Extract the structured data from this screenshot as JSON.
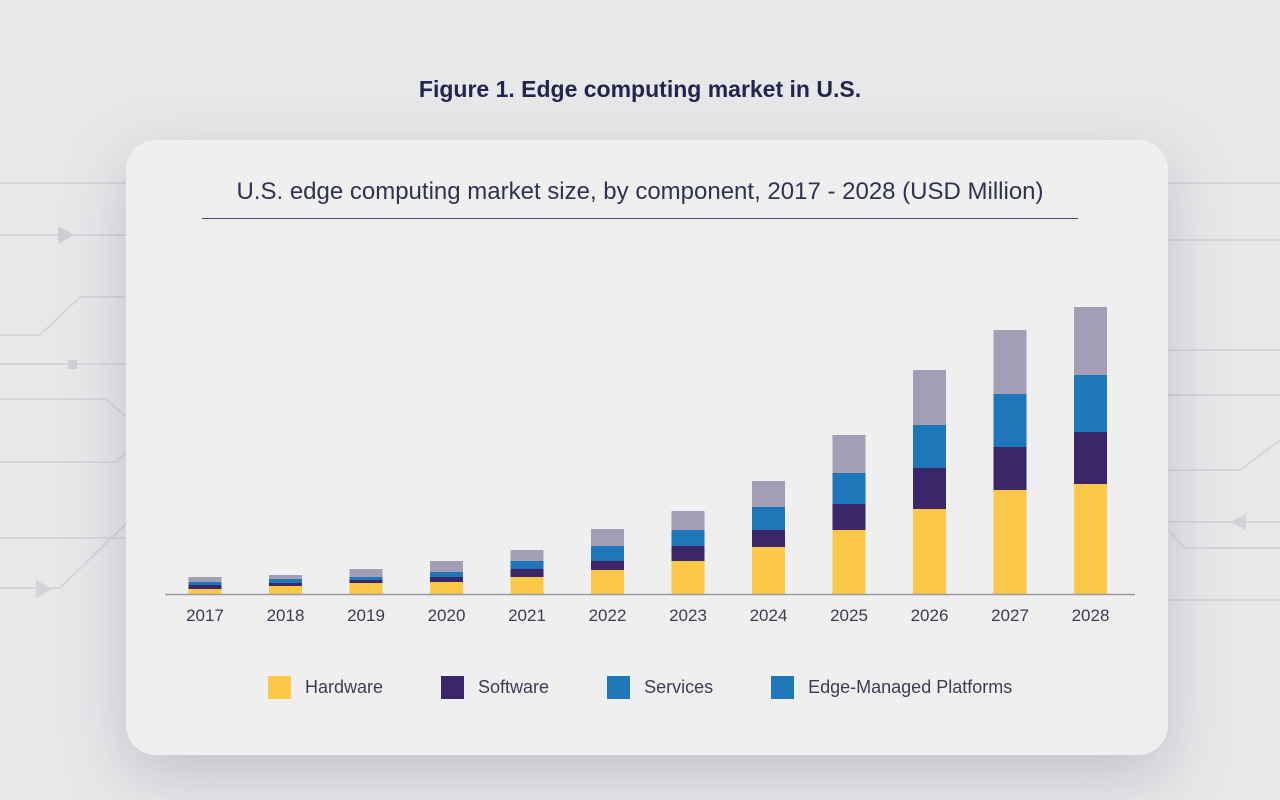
{
  "figure_title": "Figure 1. Edge computing market in U.S.",
  "chart_data": {
    "type": "bar",
    "stacked": true,
    "title": "U.S. edge computing market size, by component, 2017 - 2028 (USD Million)",
    "xlabel": "",
    "ylabel": "",
    "y_axis_shown": false,
    "grid": false,
    "legend_position": "bottom",
    "categories": [
      "2017",
      "2018",
      "2019",
      "2020",
      "2021",
      "2022",
      "2023",
      "2024",
      "2025",
      "2026",
      "2027",
      "2028"
    ],
    "series": [
      {
        "name": "Hardware",
        "color": "#fcc847",
        "values": [
          5,
          8,
          11,
          12,
          17,
          24,
          33,
          47,
          64,
          85,
          104,
          110
        ]
      },
      {
        "name": "Software",
        "color": "#3c2669",
        "values": [
          4,
          3,
          3,
          5,
          8,
          9,
          15,
          17,
          26,
          41,
          43,
          52
        ]
      },
      {
        "name": "Services",
        "color": "#1d77b8",
        "values": [
          3,
          4,
          3,
          5,
          8,
          15,
          16,
          23,
          31,
          43,
          53,
          57
        ]
      },
      {
        "name": "Edge-Managed Platforms",
        "color": "#a39db5",
        "legend_color": "#1d77b8",
        "values": [
          5,
          4,
          8,
          11,
          11,
          17,
          19,
          26,
          38,
          55,
          64,
          68
        ]
      }
    ]
  }
}
